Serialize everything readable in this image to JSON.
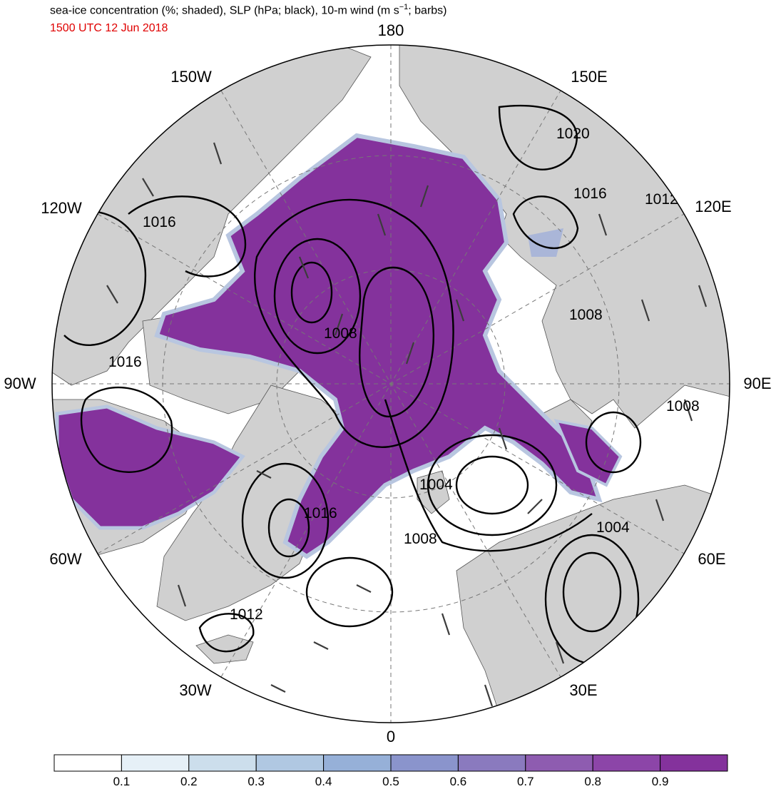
{
  "header": {
    "title": "sea-ice concentration (%; shaded), SLP (hPa; black), 10-m wind (m s",
    "title_sup": "−1",
    "title_tail": "; barbs)",
    "time": "1500 UTC 12 Jun 2018"
  },
  "longitude_labels": {
    "top": "180",
    "bottom": "0",
    "left": "90W",
    "right": "90E",
    "l150w": "150W",
    "l120w": "120W",
    "l60w": "60W",
    "l30w": "30W",
    "l150e": "150E",
    "l120e": "120E",
    "l60e": "60E",
    "l30e": "30E"
  },
  "isobar_labels": [
    "1016",
    "1016",
    "1008",
    "1020",
    "1016",
    "1012",
    "1008",
    "1008",
    "1004",
    "1004",
    "1008",
    "1016",
    "1012"
  ],
  "colorbar": {
    "ticks": [
      "0.1",
      "0.2",
      "0.3",
      "0.4",
      "0.5",
      "0.6",
      "0.7",
      "0.8",
      "0.9"
    ],
    "colors": [
      "#ffffff",
      "#e6f0f7",
      "#ccdeec",
      "#b0c8e2",
      "#96b0d8",
      "#8a94cc",
      "#8a7abe",
      "#8e5cb0",
      "#8c45a8",
      "#84329c"
    ]
  },
  "colors": {
    "land": "#d0d0d0",
    "ice": "#84329c",
    "ocean": "#ffffff",
    "contour": "#000000",
    "barb": "#3c3c3c"
  }
}
